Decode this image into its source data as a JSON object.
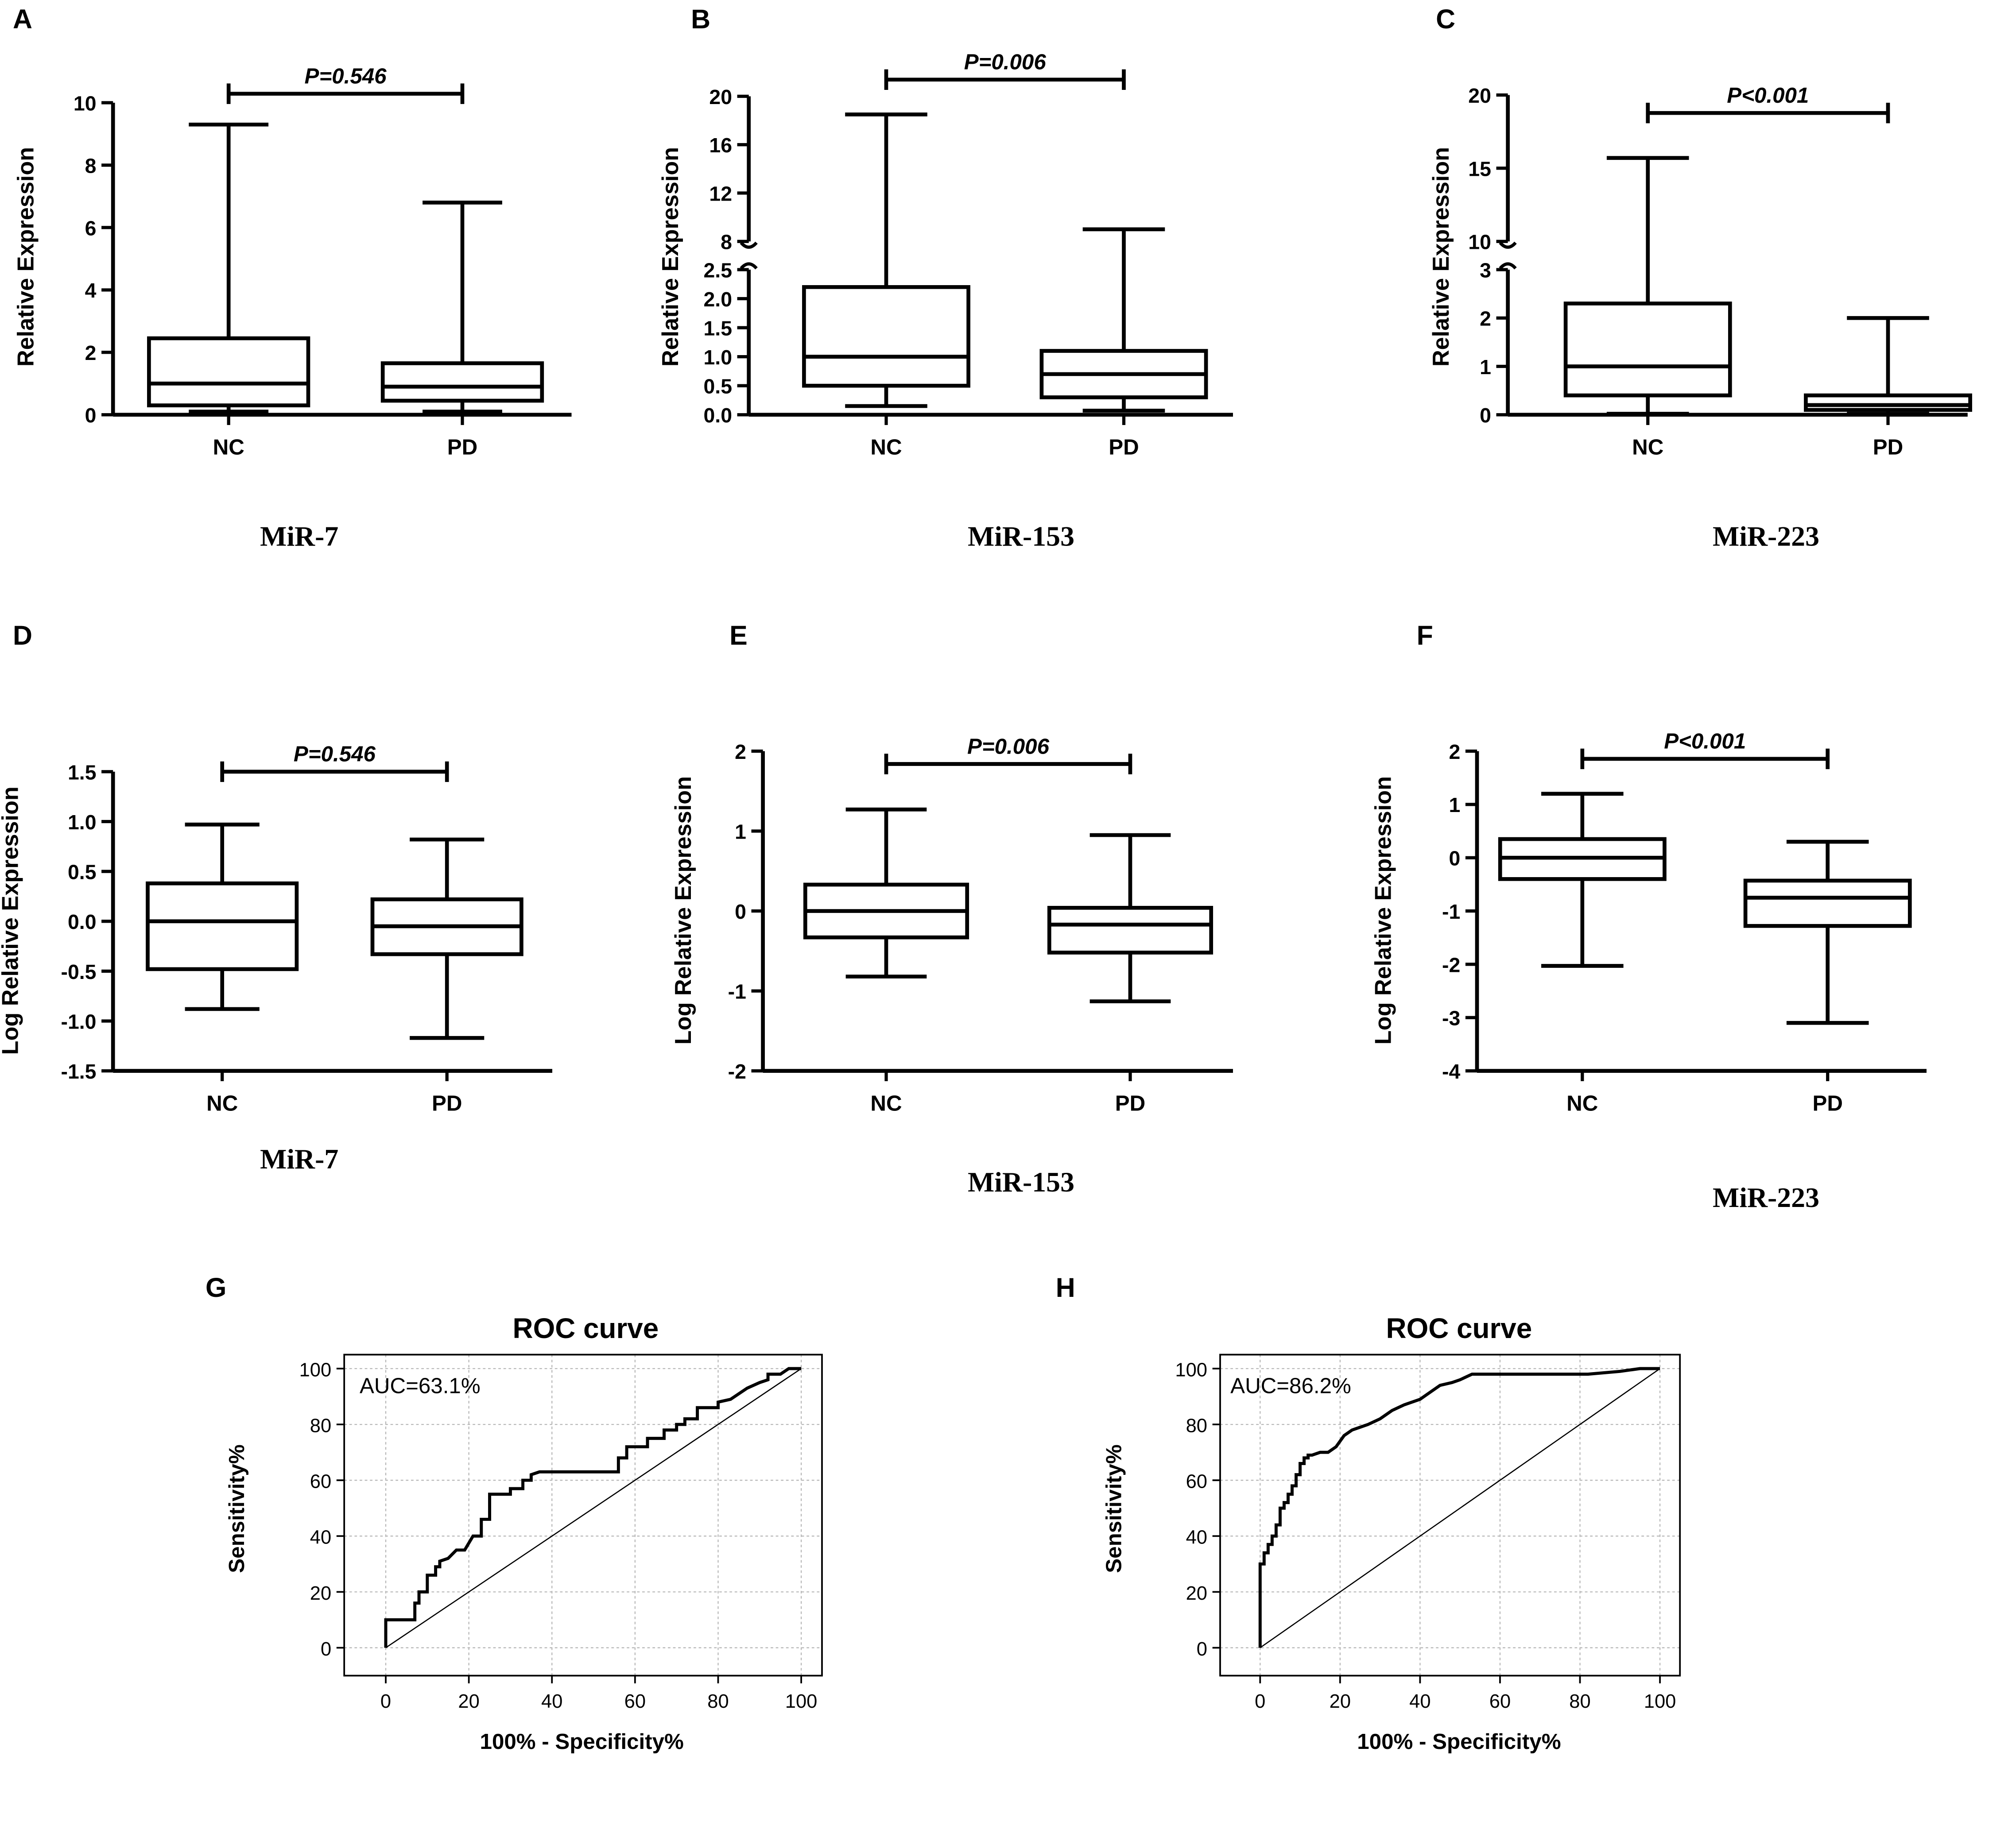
{
  "chart_data": [
    {
      "id": "A",
      "type": "box",
      "panel_letter": "A",
      "title": "",
      "caption": "MiR-7",
      "ylabel": "Relative Expression",
      "xlabel": "",
      "categories": [
        "NC",
        "PD"
      ],
      "yticks": [
        "0",
        "2",
        "4",
        "6",
        "8",
        "10"
      ],
      "ylim": [
        0,
        10
      ],
      "boxes": [
        {
          "min": 0.1,
          "q1": 0.3,
          "median": 1.0,
          "q3": 2.45,
          "max": 9.3
        },
        {
          "min": 0.1,
          "q1": 0.45,
          "median": 0.9,
          "q3": 1.65,
          "max": 6.8
        }
      ],
      "significance": "P=0.546"
    },
    {
      "id": "B",
      "type": "box",
      "panel_letter": "B",
      "title": "",
      "caption": "MiR-153",
      "ylabel": "Relative Expression",
      "xlabel": "",
      "categories": [
        "NC",
        "PD"
      ],
      "yticks": [
        "0.0",
        "0.5",
        "1.0",
        "1.5",
        "2.0",
        "2.5",
        "8",
        "12",
        "16",
        "20"
      ],
      "axis_break": {
        "lower": [
          0,
          2.5
        ],
        "upper": [
          8,
          20
        ]
      },
      "boxes": [
        {
          "min": 0.15,
          "q1": 0.5,
          "median": 1.0,
          "q3": 2.2,
          "max": 18.5
        },
        {
          "min": 0.07,
          "q1": 0.3,
          "median": 0.7,
          "q3": 1.1,
          "max": 9.0
        }
      ],
      "significance": "P=0.006"
    },
    {
      "id": "C",
      "type": "box",
      "panel_letter": "C",
      "title": "",
      "caption": "MiR-223",
      "ylabel": "Relative Expression",
      "xlabel": "",
      "categories": [
        "NC",
        "PD"
      ],
      "yticks": [
        "0",
        "1",
        "2",
        "3",
        "10",
        "15",
        "20"
      ],
      "axis_break": {
        "lower": [
          0,
          3
        ],
        "upper": [
          10,
          20
        ]
      },
      "boxes": [
        {
          "min": 0.02,
          "q1": 0.4,
          "median": 1.0,
          "q3": 2.3,
          "max": 15.7
        },
        {
          "min": 0.02,
          "q1": 0.1,
          "median": 0.2,
          "q3": 0.4,
          "max": 2.0
        }
      ],
      "significance": "P<0.001"
    },
    {
      "id": "D",
      "type": "box",
      "panel_letter": "D",
      "title": "",
      "caption": "MiR-7",
      "ylabel": "Log Relative Expression",
      "xlabel": "",
      "categories": [
        "NC",
        "PD"
      ],
      "yticks": [
        "-1.5",
        "-1.0",
        "-0.5",
        "0.0",
        "0.5",
        "1.0",
        "1.5"
      ],
      "ylim": [
        -1.5,
        1.5
      ],
      "boxes": [
        {
          "min": -0.88,
          "q1": -0.48,
          "median": 0.0,
          "q3": 0.38,
          "max": 0.97
        },
        {
          "min": -1.17,
          "q1": -0.33,
          "median": -0.05,
          "q3": 0.22,
          "max": 0.82
        }
      ],
      "significance": "P=0.546"
    },
    {
      "id": "E",
      "type": "box",
      "panel_letter": "E",
      "title": "",
      "caption": "MiR-153",
      "ylabel": "Log Relative Expression",
      "xlabel": "",
      "categories": [
        "NC",
        "PD"
      ],
      "yticks": [
        "-2",
        "-1",
        "0",
        "1",
        "2"
      ],
      "ylim": [
        -2,
        2
      ],
      "boxes": [
        {
          "min": -0.82,
          "q1": -0.33,
          "median": 0.0,
          "q3": 0.33,
          "max": 1.27
        },
        {
          "min": -1.13,
          "q1": -0.52,
          "median": -0.17,
          "q3": 0.04,
          "max": 0.95
        }
      ],
      "significance": "P=0.006"
    },
    {
      "id": "F",
      "type": "box",
      "panel_letter": "F",
      "title": "",
      "caption": "MiR-223",
      "ylabel": "Log Relative Expression",
      "xlabel": "",
      "categories": [
        "NC",
        "PD"
      ],
      "yticks": [
        "-4",
        "-3",
        "-2",
        "-1",
        "0",
        "1",
        "2"
      ],
      "ylim": [
        -4,
        2
      ],
      "boxes": [
        {
          "min": -2.03,
          "q1": -0.4,
          "median": 0.0,
          "q3": 0.35,
          "max": 1.2
        },
        {
          "min": -3.1,
          "q1": -1.28,
          "median": -0.75,
          "q3": -0.43,
          "max": 0.3
        }
      ],
      "significance": "P<0.001"
    },
    {
      "id": "G",
      "type": "line",
      "panel_letter": "G",
      "title": "ROC curve",
      "caption": "MiR-153",
      "xlabel": "100% - Specificity%",
      "ylabel": "Sensitivity%",
      "xticks": [
        "0",
        "20",
        "40",
        "60",
        "80",
        "100"
      ],
      "yticks": [
        "0",
        "20",
        "40",
        "60",
        "80",
        "100"
      ],
      "xlim": [
        -10,
        105
      ],
      "ylim": [
        -10,
        105
      ],
      "grid": true,
      "annotation": "AUC=63.1%",
      "series": [
        {
          "name": "ROC",
          "x": [
            0,
            0,
            7,
            7,
            8,
            8,
            10,
            10,
            12,
            12,
            13,
            13,
            15,
            17,
            19,
            21,
            23,
            23,
            25,
            25,
            26,
            26,
            30,
            30,
            32,
            33,
            33,
            35,
            35,
            37,
            56,
            56,
            58,
            58,
            63,
            63,
            67,
            67,
            70,
            70,
            72,
            72,
            75,
            75,
            80,
            80,
            83,
            85,
            87,
            90,
            92,
            92,
            95,
            97,
            100
          ],
          "y": [
            0,
            10,
            10,
            16,
            16,
            20,
            20,
            26,
            26,
            29,
            29,
            31,
            32,
            35,
            35,
            40,
            40,
            46,
            46,
            55,
            55,
            55,
            55,
            57,
            57,
            57,
            60,
            60,
            62,
            63,
            63,
            68,
            68,
            72,
            72,
            75,
            75,
            78,
            78,
            80,
            80,
            82,
            82,
            86,
            86,
            88,
            89,
            91,
            93,
            95,
            96,
            98,
            98,
            100,
            100
          ]
        },
        {
          "name": "reference",
          "x": [
            0,
            100
          ],
          "y": [
            0,
            100
          ]
        }
      ]
    },
    {
      "id": "H",
      "type": "line",
      "panel_letter": "H",
      "title": "ROC curve",
      "caption": "MiR-223",
      "xlabel": "100% - Specificity%",
      "ylabel": "Sensitivity%",
      "xticks": [
        "0",
        "20",
        "40",
        "60",
        "80",
        "100"
      ],
      "yticks": [
        "0",
        "20",
        "40",
        "60",
        "80",
        "100"
      ],
      "xlim": [
        -10,
        105
      ],
      "ylim": [
        -10,
        105
      ],
      "grid": true,
      "annotation": "AUC=86.2%",
      "series": [
        {
          "name": "ROC",
          "x": [
            0,
            0,
            1,
            1,
            2,
            2,
            3,
            3,
            4,
            4,
            5,
            5,
            6,
            6,
            7,
            7,
            8,
            8,
            9,
            9,
            10,
            10,
            11,
            11,
            12,
            12,
            13,
            15,
            17,
            19,
            21,
            23,
            25,
            27,
            30,
            33,
            36,
            40,
            43,
            45,
            48,
            50,
            53,
            60,
            70,
            82,
            90,
            95,
            100
          ],
          "y": [
            0,
            30,
            30,
            34,
            34,
            37,
            37,
            40,
            40,
            44,
            44,
            50,
            50,
            52,
            52,
            55,
            55,
            58,
            58,
            62,
            62,
            66,
            66,
            68,
            68,
            69,
            69,
            70,
            70,
            72,
            76,
            78,
            79,
            80,
            82,
            85,
            87,
            89,
            92,
            94,
            95,
            96,
            98,
            98,
            98,
            98,
            99,
            100,
            100
          ]
        },
        {
          "name": "reference",
          "x": [
            0,
            100
          ],
          "y": [
            0,
            100
          ]
        }
      ]
    }
  ]
}
